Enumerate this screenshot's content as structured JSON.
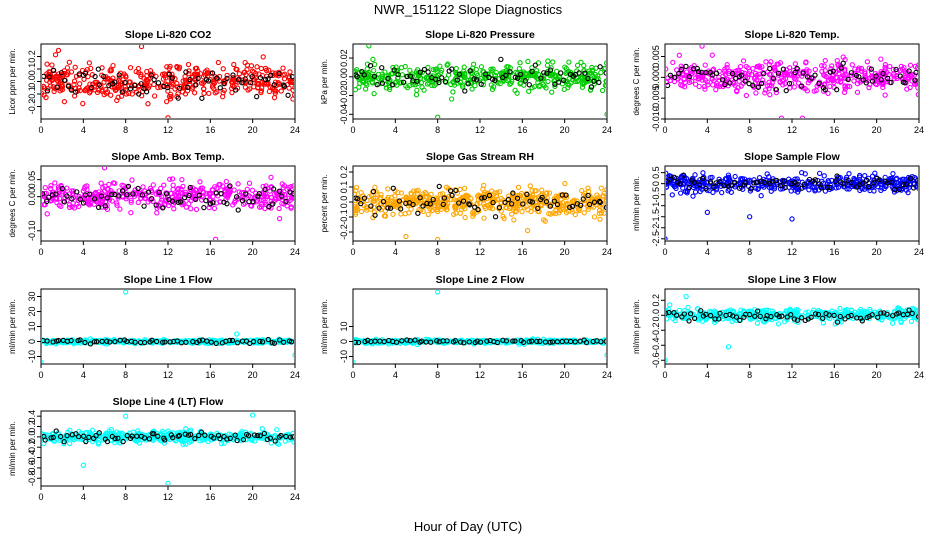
{
  "figure": {
    "title": "NWR_151122  Slope Diagnostics",
    "xlabel": "Hour of Day (UTC)",
    "highlight_color": "#000000"
  },
  "chart_data": [
    {
      "type": "scatter",
      "title": "Slope Li-820 CO2",
      "ylabel": "Licor ppm per min.",
      "color": "#ff0000",
      "xlim": [
        0,
        24
      ],
      "xticks": [
        0,
        4,
        8,
        12,
        16,
        20,
        24
      ],
      "xtick_labels": [
        "0",
        "4",
        "8",
        "12",
        "16",
        "20",
        "24"
      ],
      "ylim": [
        -0.3,
        0.3
      ],
      "yticks": [
        -0.2,
        -0.1,
        0.0,
        0.1,
        0.2
      ],
      "ytick_labels": [
        "-0.2",
        "-0.1",
        "0.0",
        "0.1",
        "0.2"
      ],
      "spread": 0.14,
      "n": 420,
      "nblack": 70,
      "seed": 11,
      "outliers": [
        [
          12.0,
          -0.29
        ],
        [
          9.5,
          0.28
        ]
      ]
    },
    {
      "type": "scatter",
      "title": "Slope Li-820 Pressure",
      "ylabel": "kPa per min.",
      "color": "#00cc00",
      "xlim": [
        0,
        24
      ],
      "xticks": [
        0,
        4,
        8,
        12,
        16,
        20,
        24
      ],
      "xtick_labels": [
        "0",
        "4",
        "8",
        "12",
        "16",
        "20",
        "24"
      ],
      "ylim": [
        -0.045,
        0.035
      ],
      "yticks": [
        -0.04,
        -0.02,
        0.0,
        0.02
      ],
      "ytick_labels": [
        "-0.04",
        "-0.02",
        "0.00",
        "0.02"
      ],
      "spread": 0.013,
      "n": 420,
      "nblack": 70,
      "seed": 23,
      "outliers": [
        [
          1.5,
          0.033
        ],
        [
          8.0,
          -0.043
        ],
        [
          24.0,
          -0.04
        ]
      ]
    },
    {
      "type": "scatter",
      "title": "Slope Li-820 Temp.",
      "ylabel": "degrees C per min.",
      "color": "#ff00ff",
      "xlim": [
        0,
        24
      ],
      "xticks": [
        0,
        4,
        8,
        12,
        16,
        20,
        24
      ],
      "xtick_labels": [
        "0",
        "4",
        "8",
        "12",
        "16",
        "20",
        "24"
      ],
      "ylim": [
        -0.01,
        0.008
      ],
      "yticks": [
        -0.01,
        -0.005,
        0.0,
        0.005
      ],
      "ytick_labels": [
        "-0.010",
        "-0.005",
        "0.000",
        "0.005"
      ],
      "spread": 0.0035,
      "n": 420,
      "nblack": 70,
      "seed": 37,
      "outliers": [
        [
          11.0,
          -0.0098
        ],
        [
          13.0,
          -0.0098
        ],
        [
          3.5,
          0.0075
        ]
      ]
    },
    {
      "type": "scatter",
      "title": "Slope Amb. Box Temp.",
      "ylabel": "degrees C per min.",
      "color": "#ff00ff",
      "xlim": [
        0,
        24
      ],
      "xticks": [
        0,
        4,
        8,
        12,
        16,
        20,
        24
      ],
      "xtick_labels": [
        "0",
        "4",
        "8",
        "12",
        "16",
        "20",
        "24"
      ],
      "ylim": [
        -0.13,
        0.09
      ],
      "yticks": [
        -0.1,
        0.0,
        0.05
      ],
      "ytick_labels": [
        "-0.10",
        "0.00",
        "0.05"
      ],
      "spread": 0.04,
      "n": 420,
      "nblack": 70,
      "seed": 41,
      "outliers": [
        [
          16.5,
          -0.125
        ],
        [
          6.0,
          0.085
        ]
      ]
    },
    {
      "type": "scatter",
      "title": "Slope Gas Stream RH",
      "ylabel": "percent per min.",
      "color": "#ffa500",
      "xlim": [
        0,
        24
      ],
      "xticks": [
        0,
        4,
        8,
        12,
        16,
        20,
        24
      ],
      "xtick_labels": [
        "0",
        "4",
        "8",
        "12",
        "16",
        "20",
        "24"
      ],
      "ylim": [
        -0.26,
        0.24
      ],
      "yticks": [
        -0.2,
        -0.1,
        0.0,
        0.1,
        0.2
      ],
      "ytick_labels": [
        "-0.2",
        "-0.1",
        "0.0",
        "0.1",
        "0.2"
      ],
      "spread": 0.09,
      "n": 520,
      "nblack": 70,
      "seed": 53,
      "outliers": [
        [
          8.0,
          -0.25
        ],
        [
          5.0,
          -0.23
        ],
        [
          16.5,
          -0.19
        ]
      ]
    },
    {
      "type": "scatter",
      "title": "Slope Sample Flow",
      "ylabel": "ml/min per min.",
      "color": "#0000ff",
      "xlim": [
        0,
        24
      ],
      "xticks": [
        0,
        4,
        8,
        12,
        16,
        20,
        24
      ],
      "xtick_labels": [
        "0",
        "4",
        "8",
        "12",
        "16",
        "20",
        "24"
      ],
      "ylim": [
        -2.6,
        0.8
      ],
      "yticks": [
        -2.5,
        -2.0,
        -1.5,
        -1.0,
        -0.5,
        0.0,
        0.5
      ],
      "ytick_labels": [
        "-2.5",
        "-2",
        "-1.5",
        "-1",
        "-0.5",
        "0",
        "0.5"
      ],
      "spread": 0.35,
      "n": 420,
      "nblack": 70,
      "seed": 67,
      "outliers": [
        [
          0.0,
          -2.5
        ],
        [
          12.0,
          -1.6
        ],
        [
          4.0,
          -1.3
        ],
        [
          8.0,
          -1.5
        ]
      ]
    },
    {
      "type": "scatter",
      "title": "Slope Line 1 Flow",
      "ylabel": "ml/min per min.",
      "color": "#00ffff",
      "xlim": [
        0,
        24
      ],
      "xticks": [
        0,
        4,
        8,
        12,
        16,
        20,
        24
      ],
      "xtick_labels": [
        "0",
        "4",
        "8",
        "12",
        "16",
        "20",
        "24"
      ],
      "ylim": [
        -15,
        35
      ],
      "yticks": [
        -10,
        0,
        10,
        20,
        30
      ],
      "ytick_labels": [
        "-10",
        "0",
        "10",
        "20",
        "30"
      ],
      "spread": 1.2,
      "n": 380,
      "nblack": 60,
      "seed": 71,
      "outliers": [
        [
          8.0,
          33.0
        ],
        [
          0.0,
          -14.0
        ],
        [
          24.0,
          -9.0
        ],
        [
          18.5,
          5.0
        ]
      ]
    },
    {
      "type": "scatter",
      "title": "Slope Line 2 Flow",
      "ylabel": "ml/min per min.",
      "color": "#00ffff",
      "xlim": [
        0,
        24
      ],
      "xticks": [
        0,
        4,
        8,
        12,
        16,
        20,
        24
      ],
      "xtick_labels": [
        "0",
        "4",
        "8",
        "12",
        "16",
        "20",
        "24"
      ],
      "ylim": [
        -15,
        35
      ],
      "yticks": [
        -10,
        0,
        10
      ],
      "ytick_labels": [
        "-10",
        "0",
        "10"
      ],
      "spread": 1.2,
      "n": 380,
      "nblack": 60,
      "seed": 83,
      "outliers": [
        [
          8.0,
          33.0
        ],
        [
          0.0,
          -14.0
        ],
        [
          24.0,
          -9.0
        ]
      ]
    },
    {
      "type": "scatter",
      "title": "Slope Line 3 Flow",
      "ylabel": "ml/min per min.",
      "color": "#00ffff",
      "xlim": [
        0,
        24
      ],
      "xticks": [
        0,
        4,
        8,
        12,
        16,
        20,
        24
      ],
      "xtick_labels": [
        "0",
        "4",
        "8",
        "12",
        "16",
        "20",
        "24"
      ],
      "ylim": [
        -0.65,
        0.35
      ],
      "yticks": [
        -0.6,
        -0.4,
        -0.2,
        0.0,
        0.2
      ],
      "ytick_labels": [
        "-0.6",
        "-0.4",
        "-0.2",
        "0.0",
        "0.2"
      ],
      "spread": 0.09,
      "n": 420,
      "nblack": 70,
      "seed": 97,
      "outliers": [
        [
          0.0,
          -0.6
        ],
        [
          6.0,
          -0.42
        ],
        [
          2.0,
          0.25
        ]
      ]
    },
    {
      "type": "scatter",
      "title": "Slope Line 4 (LT) Flow",
      "ylabel": "ml/min per min.",
      "color": "#00ffff",
      "xlim": [
        0,
        24
      ],
      "xticks": [
        0,
        4,
        8,
        12,
        16,
        20,
        24
      ],
      "xtick_labels": [
        "0",
        "4",
        "8",
        "12",
        "16",
        "20",
        "24"
      ],
      "ylim": [
        -0.95,
        0.5
      ],
      "yticks": [
        -0.8,
        -0.6,
        -0.4,
        -0.2,
        0.0,
        0.2,
        0.4
      ],
      "ytick_labels": [
        "-0.8",
        "-0.6",
        "-0.4",
        "-0.2",
        "0.0",
        "0.2",
        "0.4"
      ],
      "spread": 0.11,
      "n": 420,
      "nblack": 70,
      "seed": 101,
      "outliers": [
        [
          12.0,
          -0.9
        ],
        [
          4.0,
          -0.55
        ],
        [
          8.0,
          0.4
        ],
        [
          20.0,
          0.42
        ]
      ]
    }
  ]
}
